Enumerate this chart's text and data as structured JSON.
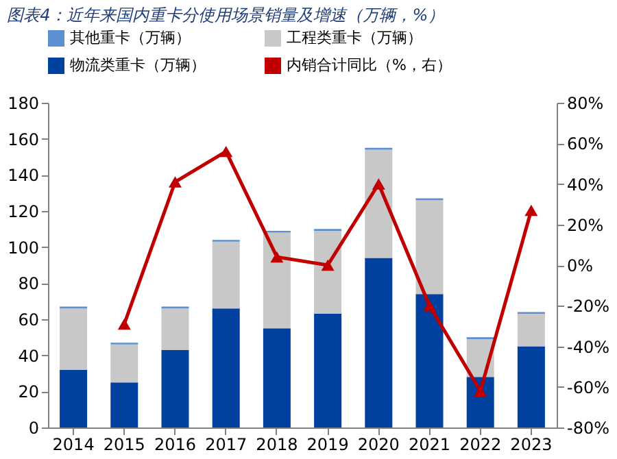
{
  "chart_data": {
    "type": "bar",
    "title": "图表4：近年来国内重卡分使用场景销量及增速（万辆，%）",
    "categories": [
      "2014",
      "2015",
      "2016",
      "2017",
      "2018",
      "2019",
      "2020",
      "2021",
      "2022",
      "2023"
    ],
    "stacked": true,
    "series": [
      {
        "name": "物流类重卡（万辆）",
        "color": "#0041a0",
        "values": [
          32,
          25,
          43,
          66,
          55,
          63,
          94,
          74,
          28,
          45
        ]
      },
      {
        "name": "工程类重卡（万辆）",
        "color": "#c8c8c8",
        "values": [
          34,
          21,
          23,
          37,
          53,
          46,
          60,
          52,
          21,
          18
        ]
      },
      {
        "name": "其他重卡（万辆）",
        "color": "#5b8fd0",
        "values": [
          1,
          1,
          1,
          1,
          1,
          1,
          1,
          1,
          1,
          1
        ]
      },
      {
        "name": "内销合计同比（%，右）",
        "color": "#c00000",
        "type": "line",
        "axis": "y2",
        "marker": "triangle",
        "values": [
          null,
          -29,
          41,
          56,
          4,
          0,
          40,
          -20,
          -62,
          27
        ]
      }
    ],
    "ylim": [
      0,
      180
    ],
    "yticks": [
      0,
      20,
      40,
      60,
      80,
      100,
      120,
      140,
      160,
      180
    ],
    "y2lim": [
      -80,
      80
    ],
    "y2ticks": [
      {
        "value": -80,
        "label": "-80%"
      },
      {
        "value": -60,
        "label": "-60%"
      },
      {
        "value": -40,
        "label": "-40%"
      },
      {
        "value": -20,
        "label": "-20%"
      },
      {
        "value": 0,
        "label": "0%"
      },
      {
        "value": 20,
        "label": "20%"
      },
      {
        "value": 40,
        "label": "40%"
      },
      {
        "value": 60,
        "label": "60%"
      },
      {
        "value": 80,
        "label": "80%"
      }
    ],
    "grid": false,
    "legend": "top"
  }
}
